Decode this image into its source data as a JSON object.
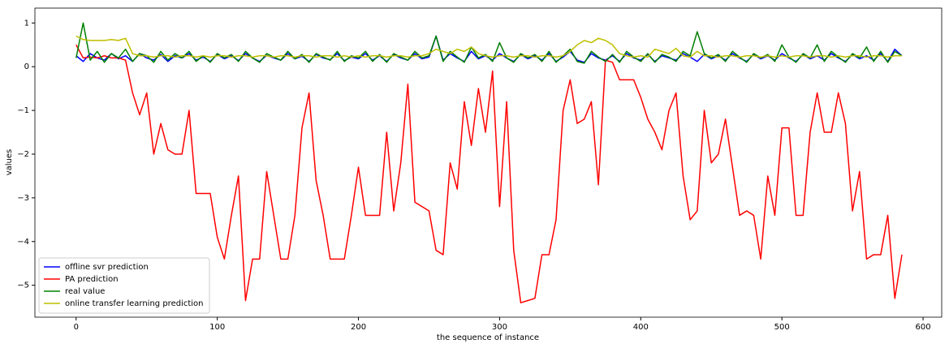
{
  "chart_data": {
    "type": "line",
    "xlabel": "the sequence of instance",
    "ylabel": "values",
    "x": [
      0,
      5,
      10,
      15,
      20,
      25,
      30,
      35,
      40,
      45,
      50,
      55,
      60,
      65,
      70,
      75,
      80,
      85,
      90,
      95,
      100,
      105,
      110,
      115,
      120,
      125,
      130,
      135,
      140,
      145,
      150,
      155,
      160,
      165,
      170,
      175,
      180,
      185,
      190,
      195,
      200,
      205,
      210,
      215,
      220,
      225,
      230,
      235,
      240,
      245,
      250,
      255,
      260,
      265,
      270,
      275,
      280,
      285,
      290,
      295,
      300,
      305,
      310,
      315,
      320,
      325,
      330,
      335,
      340,
      345,
      350,
      355,
      360,
      365,
      370,
      375,
      380,
      385,
      390,
      395,
      400,
      405,
      410,
      415,
      420,
      425,
      430,
      435,
      440,
      445,
      450,
      455,
      460,
      465,
      470,
      475,
      480,
      485,
      490,
      495,
      500,
      505,
      510,
      515,
      520,
      525,
      530,
      535,
      540,
      545,
      550,
      555,
      560,
      565,
      570,
      575,
      580,
      585
    ],
    "series": [
      {
        "name": "offline svr prediction",
        "color": "#0000ff",
        "values": [
          0.25,
          0.12,
          0.3,
          0.2,
          0.15,
          0.3,
          0.18,
          0.25,
          0.12,
          0.3,
          0.2,
          0.15,
          0.28,
          0.12,
          0.25,
          0.2,
          0.3,
          0.15,
          0.22,
          0.12,
          0.28,
          0.18,
          0.25,
          0.14,
          0.3,
          0.2,
          0.12,
          0.26,
          0.2,
          0.15,
          0.3,
          0.18,
          0.24,
          0.12,
          0.28,
          0.2,
          0.16,
          0.3,
          0.14,
          0.22,
          0.18,
          0.3,
          0.15,
          0.25,
          0.12,
          0.28,
          0.2,
          0.15,
          0.3,
          0.18,
          0.22,
          0.7,
          0.15,
          0.3,
          0.2,
          0.12,
          0.35,
          0.18,
          0.25,
          0.15,
          0.3,
          0.2,
          0.12,
          0.28,
          0.18,
          0.25,
          0.15,
          0.3,
          0.12,
          0.22,
          0.35,
          0.15,
          0.1,
          0.3,
          0.2,
          0.15,
          0.25,
          0.12,
          0.3,
          0.2,
          0.15,
          0.28,
          0.12,
          0.25,
          0.2,
          0.15,
          0.3,
          0.22,
          0.12,
          0.28,
          0.18,
          0.25,
          0.15,
          0.3,
          0.2,
          0.12,
          0.28,
          0.18,
          0.25,
          0.15,
          0.3,
          0.2,
          0.12,
          0.28,
          0.18,
          0.25,
          0.15,
          0.3,
          0.2,
          0.12,
          0.28,
          0.18,
          0.25,
          0.15,
          0.3,
          0.12,
          0.4,
          0.25
        ]
      },
      {
        "name": "PA prediction",
        "color": "#ff0000",
        "values": [
          0.5,
          0.2,
          0.22,
          0.2,
          0.25,
          0.2,
          0.2,
          0.15,
          -0.6,
          -1.1,
          -0.6,
          -2.0,
          -1.3,
          -1.9,
          -2.0,
          -2.0,
          -1.0,
          -2.9,
          -2.9,
          -2.9,
          -3.9,
          -4.4,
          -3.4,
          -2.5,
          -5.35,
          -4.4,
          -4.4,
          -2.4,
          -3.4,
          -4.4,
          -4.4,
          -3.4,
          -1.4,
          -0.6,
          -2.6,
          -3.4,
          -4.4,
          -4.4,
          -4.4,
          -3.4,
          -2.3,
          -3.4,
          -3.4,
          -3.4,
          -1.5,
          -3.3,
          -2.2,
          -0.4,
          -3.1,
          -3.2,
          -3.3,
          -4.2,
          -4.3,
          -2.2,
          -2.8,
          -0.8,
          -1.8,
          -0.5,
          -1.5,
          -0.1,
          -3.2,
          -0.8,
          -4.2,
          -5.4,
          -5.35,
          -5.3,
          -4.3,
          -4.3,
          -3.5,
          -1.0,
          -0.3,
          -1.3,
          -1.2,
          -0.8,
          -2.7,
          0.15,
          0.1,
          -0.3,
          -0.3,
          -0.3,
          -0.7,
          -1.2,
          -1.5,
          -1.9,
          -1.0,
          -0.6,
          -2.5,
          -3.5,
          -3.3,
          -1.0,
          -2.2,
          -2.0,
          -1.2,
          -2.3,
          -3.4,
          -3.3,
          -3.4,
          -4.4,
          -2.5,
          -3.4,
          -1.4,
          -1.4,
          -3.4,
          -3.4,
          -1.5,
          -0.6,
          -1.5,
          -1.5,
          -0.6,
          -1.3,
          -3.3,
          -2.4,
          -4.4,
          -4.3,
          -4.3,
          -3.4,
          -5.3,
          -4.3
        ]
      },
      {
        "name": "real value",
        "color": "#008000",
        "values": [
          0.2,
          1.0,
          0.15,
          0.35,
          0.1,
          0.3,
          0.2,
          0.4,
          0.12,
          0.3,
          0.25,
          0.1,
          0.35,
          0.15,
          0.3,
          0.2,
          0.35,
          0.12,
          0.25,
          0.1,
          0.3,
          0.2,
          0.28,
          0.12,
          0.35,
          0.2,
          0.1,
          0.3,
          0.22,
          0.15,
          0.35,
          0.18,
          0.28,
          0.1,
          0.3,
          0.22,
          0.15,
          0.35,
          0.12,
          0.25,
          0.2,
          0.35,
          0.12,
          0.28,
          0.1,
          0.3,
          0.22,
          0.15,
          0.35,
          0.2,
          0.25,
          0.7,
          0.12,
          0.35,
          0.22,
          0.1,
          0.45,
          0.2,
          0.28,
          0.12,
          0.55,
          0.2,
          0.1,
          0.3,
          0.2,
          0.28,
          0.12,
          0.35,
          0.1,
          0.25,
          0.4,
          0.12,
          0.08,
          0.35,
          0.22,
          0.12,
          0.28,
          0.1,
          0.35,
          0.22,
          0.12,
          0.3,
          0.1,
          0.28,
          0.22,
          0.12,
          0.35,
          0.25,
          0.8,
          0.3,
          0.2,
          0.28,
          0.12,
          0.35,
          0.22,
          0.1,
          0.3,
          0.2,
          0.28,
          0.12,
          0.5,
          0.22,
          0.1,
          0.3,
          0.2,
          0.5,
          0.12,
          0.35,
          0.22,
          0.1,
          0.3,
          0.2,
          0.45,
          0.12,
          0.35,
          0.1,
          0.35,
          0.25
        ]
      },
      {
        "name": "online transfer learning prediction",
        "color": "#bfbf00",
        "values": [
          0.7,
          0.62,
          0.6,
          0.6,
          0.6,
          0.62,
          0.6,
          0.65,
          0.3,
          0.25,
          0.25,
          0.22,
          0.25,
          0.25,
          0.22,
          0.25,
          0.25,
          0.22,
          0.25,
          0.22,
          0.25,
          0.25,
          0.22,
          0.25,
          0.25,
          0.22,
          0.25,
          0.25,
          0.22,
          0.25,
          0.25,
          0.22,
          0.25,
          0.25,
          0.22,
          0.25,
          0.25,
          0.22,
          0.25,
          0.22,
          0.25,
          0.22,
          0.25,
          0.25,
          0.22,
          0.25,
          0.25,
          0.22,
          0.25,
          0.25,
          0.3,
          0.4,
          0.35,
          0.3,
          0.4,
          0.35,
          0.45,
          0.3,
          0.25,
          0.22,
          0.25,
          0.25,
          0.22,
          0.25,
          0.25,
          0.22,
          0.25,
          0.25,
          0.22,
          0.25,
          0.35,
          0.5,
          0.6,
          0.55,
          0.65,
          0.6,
          0.5,
          0.3,
          0.25,
          0.22,
          0.25,
          0.22,
          0.4,
          0.35,
          0.3,
          0.42,
          0.25,
          0.22,
          0.35,
          0.25,
          0.25,
          0.22,
          0.25,
          0.25,
          0.22,
          0.25,
          0.25,
          0.22,
          0.25,
          0.22,
          0.25,
          0.22,
          0.25,
          0.25,
          0.22,
          0.25,
          0.25,
          0.22,
          0.25,
          0.22,
          0.25,
          0.25,
          0.22,
          0.25,
          0.25,
          0.22,
          0.25,
          0.25
        ]
      }
    ],
    "xlim": [
      -29.2,
      613.2
    ],
    "ylim": [
      -5.73,
      1.34
    ],
    "xticks": [
      0,
      100,
      200,
      300,
      400,
      500,
      600
    ],
    "yticks": [
      {
        "value": -5,
        "label": "−5"
      },
      {
        "value": -4,
        "label": "−4"
      },
      {
        "value": -3,
        "label": "−3"
      },
      {
        "value": -2,
        "label": "−2"
      },
      {
        "value": -1,
        "label": "−1"
      },
      0,
      1
    ],
    "legend": "lower left"
  }
}
